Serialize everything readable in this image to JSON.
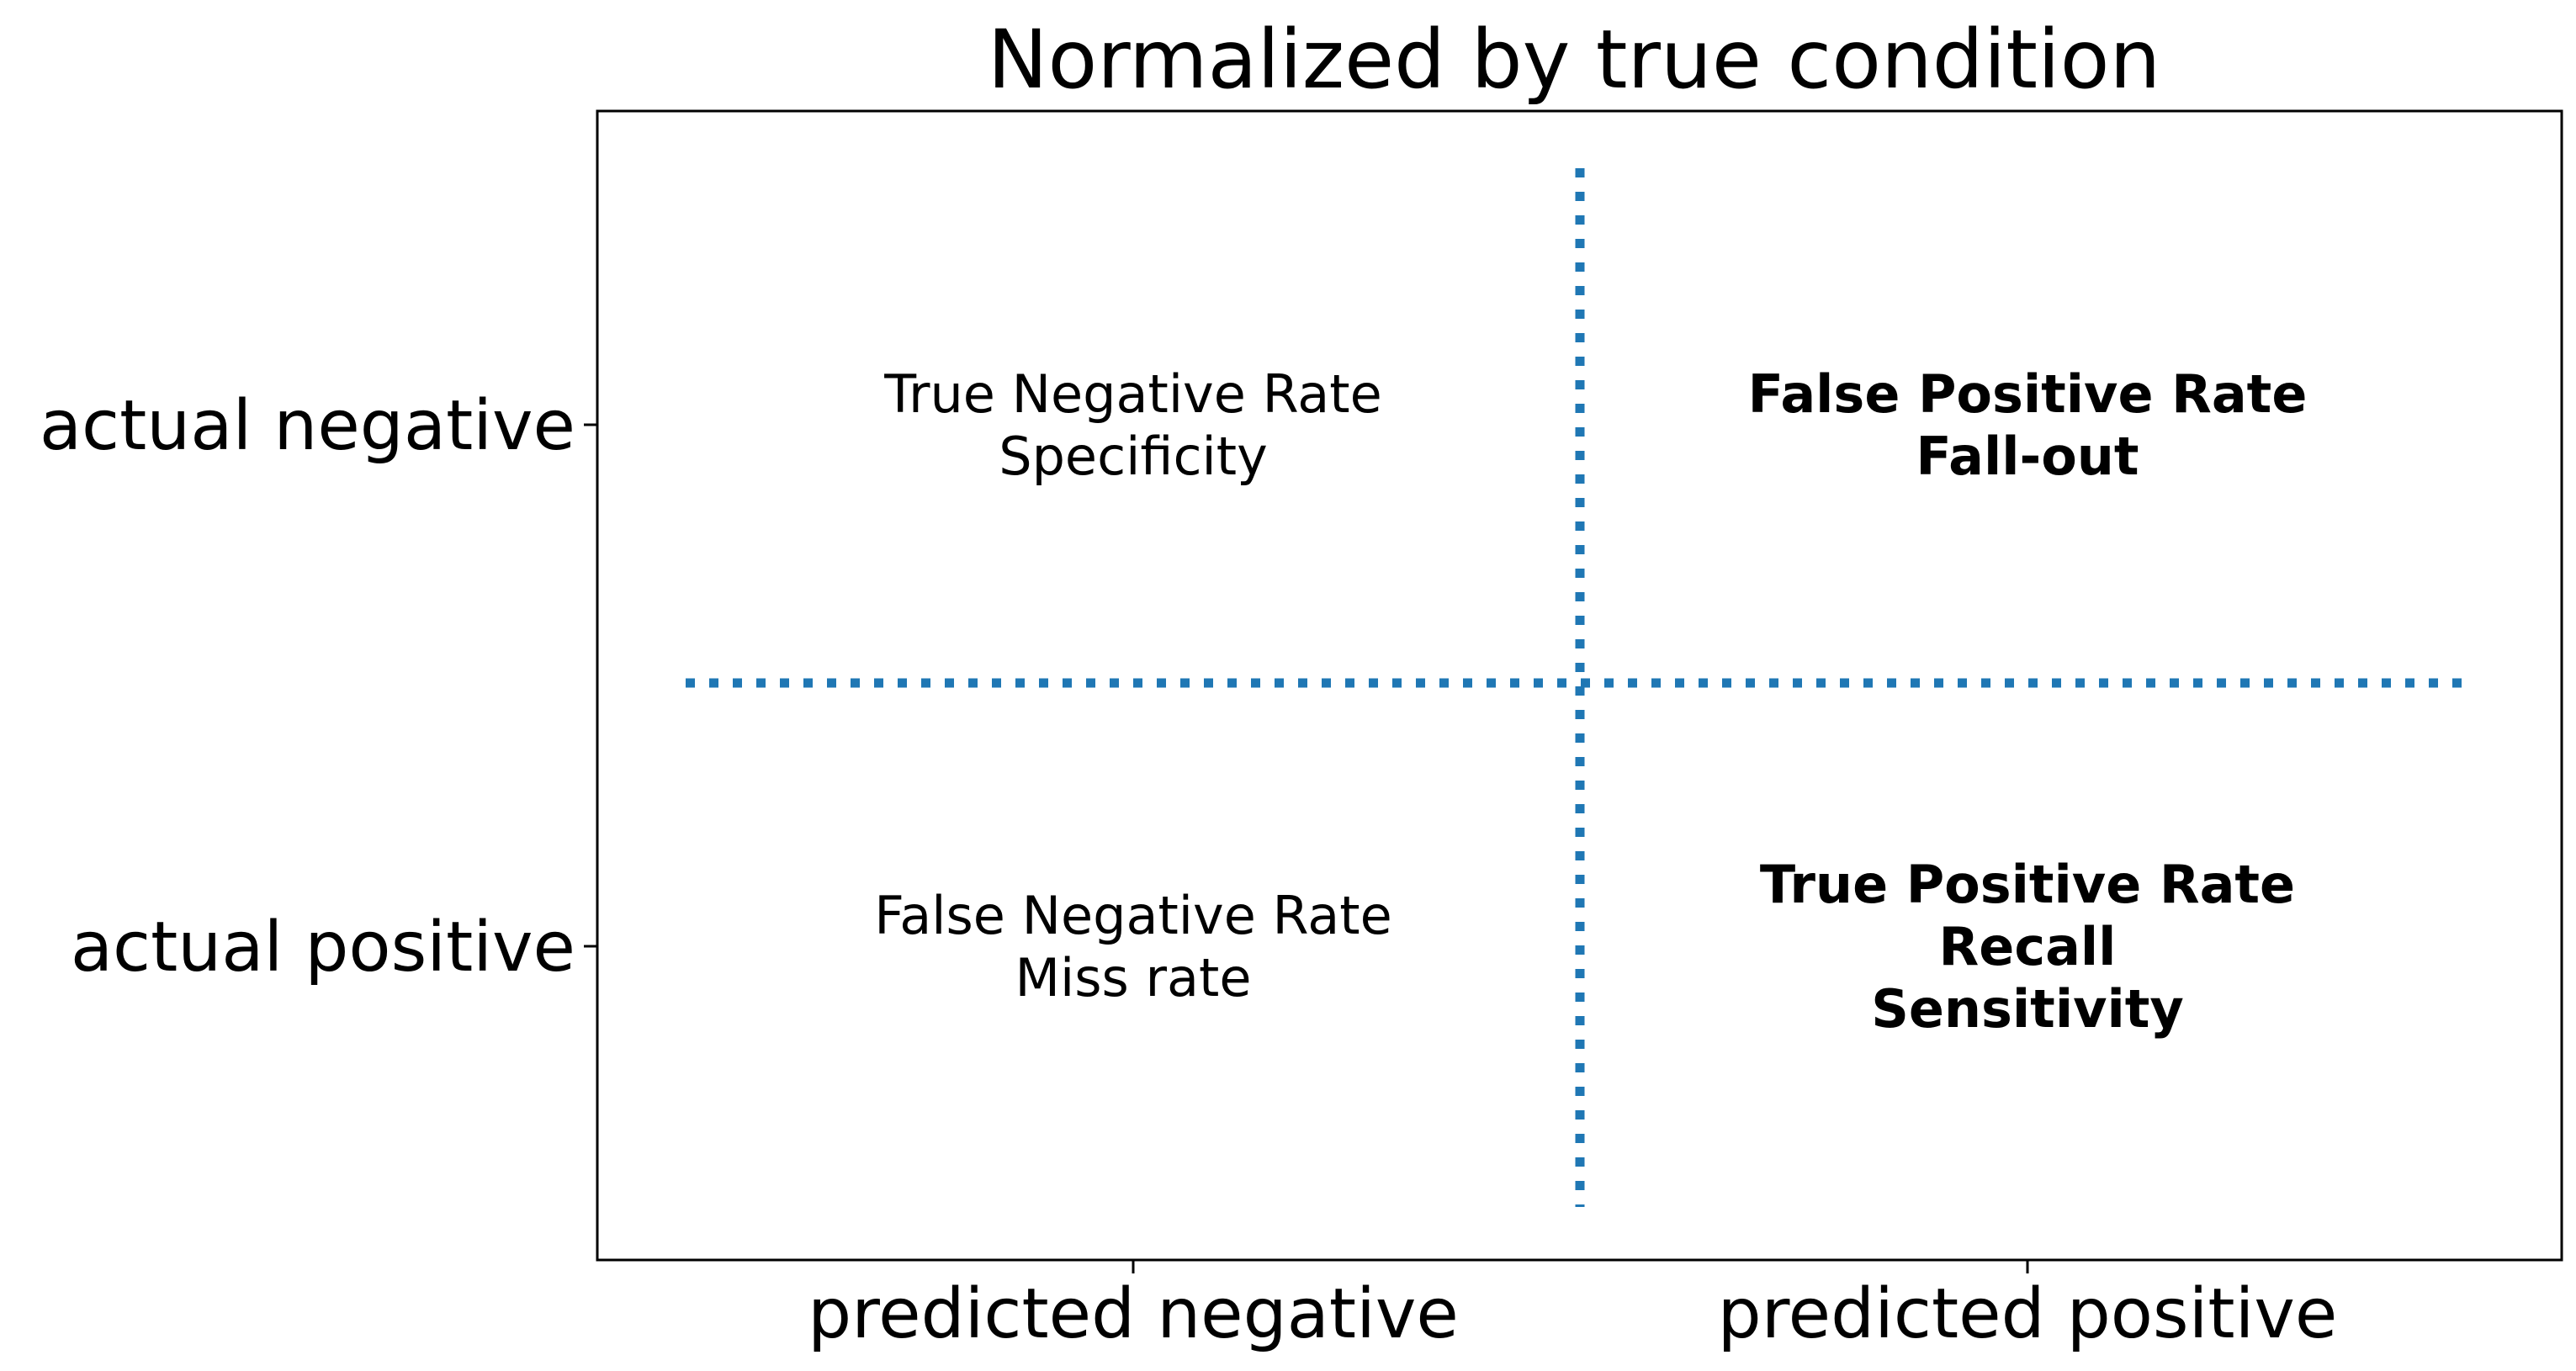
{
  "title": "Normalized by true condition",
  "rows": [
    {
      "label": "actual negative"
    },
    {
      "label": "actual positive"
    }
  ],
  "columns": [
    {
      "label": "predicted negative"
    },
    {
      "label": "predicted positive"
    }
  ],
  "cells": [
    {
      "row": 0,
      "col": 0,
      "bold": false,
      "lines": [
        "True Negative Rate",
        "Specificity"
      ]
    },
    {
      "row": 0,
      "col": 1,
      "bold": true,
      "lines": [
        "False Positive Rate",
        "Fall-out"
      ]
    },
    {
      "row": 1,
      "col": 0,
      "bold": false,
      "lines": [
        "False Negative Rate",
        "Miss rate"
      ]
    },
    {
      "row": 1,
      "col": 1,
      "bold": true,
      "lines": [
        "True Positive Rate",
        "Recall",
        "Sensitivity"
      ]
    }
  ],
  "colors": {
    "divider": "#1f77b4",
    "frame": "#000000",
    "text": "#000000"
  }
}
